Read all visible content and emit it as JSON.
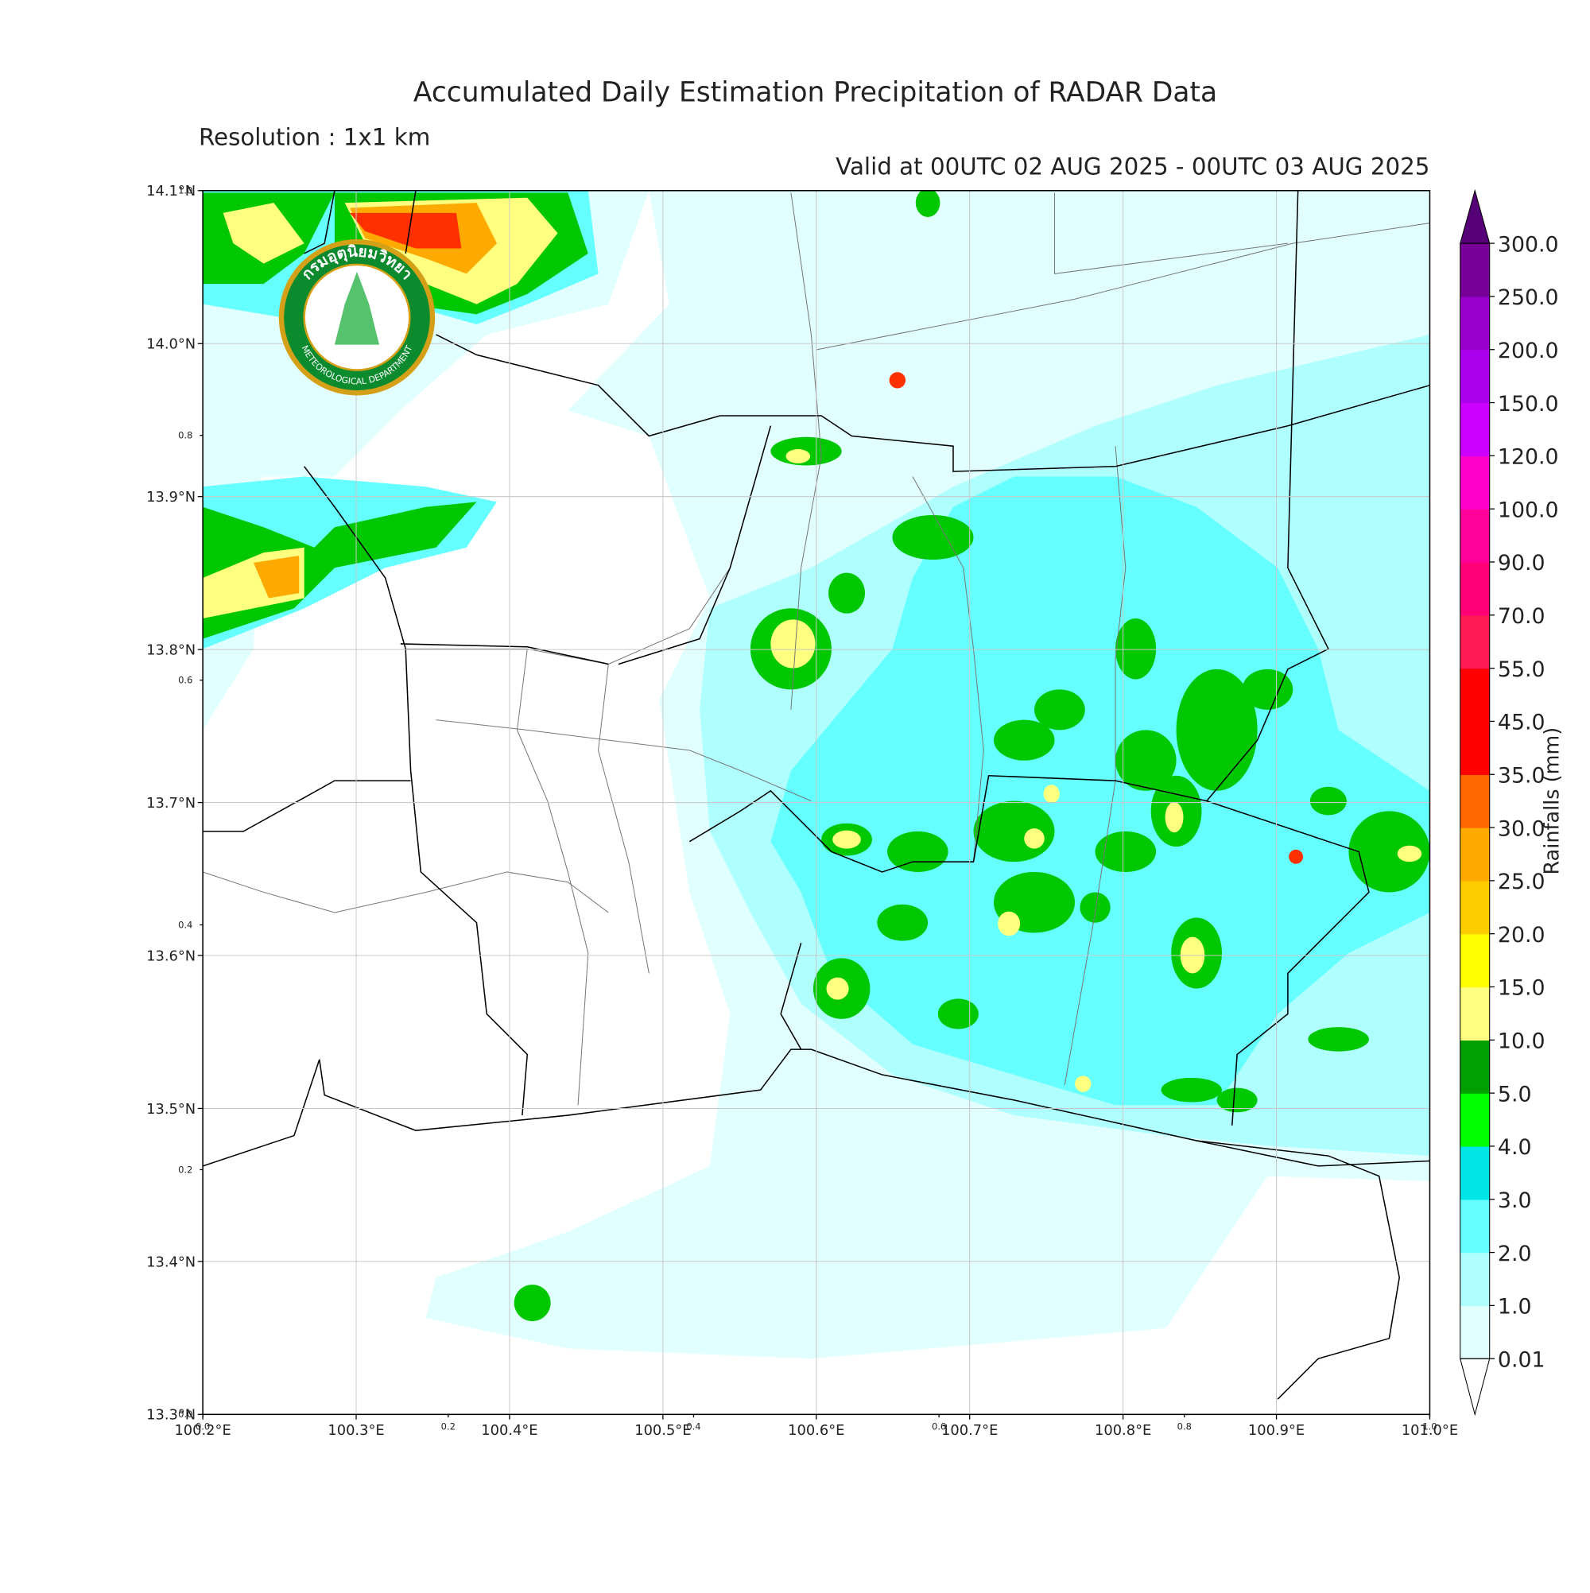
{
  "chart_data": {
    "type": "map",
    "title": "Accumulated Daily Estimation Precipitation of RADAR Data",
    "subtitle": "Resolution : 1x1 km",
    "valid": "Valid at 00UTC 02 AUG 2025 - 00UTC 03 AUG 2025",
    "xlim": [
      100.2,
      101.0
    ],
    "ylim": [
      13.3,
      14.1
    ],
    "xticks": [
      {
        "value": 100.2,
        "label": "100.2°E"
      },
      {
        "value": 100.3,
        "label": "100.3°E"
      },
      {
        "value": 100.4,
        "label": "100.4°E"
      },
      {
        "value": 100.5,
        "label": "100.5°E"
      },
      {
        "value": 100.6,
        "label": "100.6°E"
      },
      {
        "value": 100.7,
        "label": "100.7°E"
      },
      {
        "value": 100.8,
        "label": "100.8°E"
      },
      {
        "value": 100.9,
        "label": "100.9°E"
      },
      {
        "value": 101.0,
        "label": "101.0°E"
      }
    ],
    "yticks": [
      {
        "value": 13.3,
        "label": "13.3°N"
      },
      {
        "value": 13.4,
        "label": "13.4°N"
      },
      {
        "value": 13.5,
        "label": "13.5°N"
      },
      {
        "value": 13.6,
        "label": "13.6°N"
      },
      {
        "value": 13.7,
        "label": "13.7°N"
      },
      {
        "value": 13.8,
        "label": "13.8°N"
      },
      {
        "value": 13.9,
        "label": "13.9°N"
      },
      {
        "value": 14.0,
        "label": "14.0°N"
      },
      {
        "value": 14.1,
        "label": "14.1°N"
      }
    ],
    "inner_lim": [
      0,
      1
    ],
    "inner_xticks": [
      {
        "value": 0,
        "label": "0.0"
      },
      0.2,
      0.4,
      0.6,
      0.8,
      {
        "value": 1,
        "label": "1.0"
      }
    ],
    "inner_yticks": [
      {
        "value": 0,
        "label": "0.0"
      },
      0.2,
      0.4,
      0.6,
      0.8,
      {
        "value": 1,
        "label": "1.0"
      }
    ],
    "grid": true,
    "colorbar": {
      "label": "Rainfalls (mm)",
      "levels": [
        0.01,
        {
          "value": 1,
          "label": "1.0"
        },
        {
          "value": 2,
          "label": "2.0"
        },
        {
          "value": 3,
          "label": "3.0"
        },
        {
          "value": 4,
          "label": "4.0"
        },
        {
          "value": 5,
          "label": "5.0"
        },
        {
          "value": 10,
          "label": "10.0"
        },
        {
          "value": 15,
          "label": "15.0"
        },
        {
          "value": 20,
          "label": "20.0"
        },
        {
          "value": 25,
          "label": "25.0"
        },
        {
          "value": 30,
          "label": "30.0"
        },
        {
          "value": 35,
          "label": "35.0"
        },
        {
          "value": 45,
          "label": "45.0"
        },
        {
          "value": 55,
          "label": "55.0"
        },
        {
          "value": 70,
          "label": "70.0"
        },
        {
          "value": 90,
          "label": "90.0"
        },
        {
          "value": 100,
          "label": "100.0"
        },
        {
          "value": 120,
          "label": "120.0"
        },
        {
          "value": 150,
          "label": "150.0"
        },
        {
          "value": 200,
          "label": "200.0"
        },
        {
          "value": 250,
          "label": "250.0"
        },
        {
          "value": 300,
          "label": "300.0"
        }
      ],
      "colors": [
        "#e1ffff",
        "#b0ffff",
        "#66ffff",
        "#00e6e6",
        "#00ff00",
        "#00a000",
        "#ffff80",
        "#ffff00",
        "#ffcc00",
        "#ffaa00",
        "#ff6600",
        "#ff0000",
        "#ff0000",
        "#ff1a55",
        "#ff0077",
        "#ff0099",
        "#ff00cc",
        "#cc00ff",
        "#aa00ee",
        "#9900cc",
        "#770099"
      ],
      "under_color": "#ffffff",
      "over_color": "#550077"
    }
  },
  "logo": {
    "thai": "กรมอุตุนิยมวิทยา",
    "english": "METEOROLOGICAL DEPARTMENT"
  }
}
